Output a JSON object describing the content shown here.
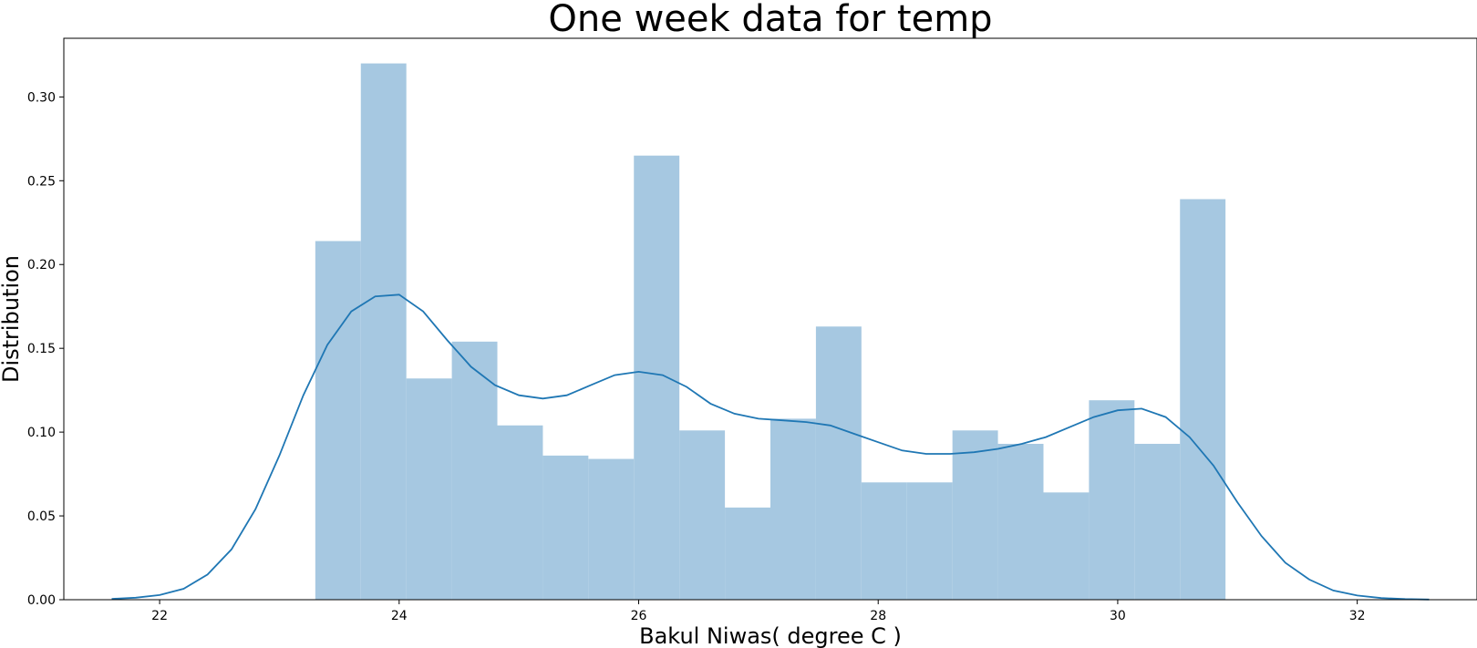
{
  "chart_data": {
    "type": "bar",
    "title": "One week data for temp",
    "xlabel": "Bakul Niwas( degree C )",
    "ylabel": "Distribution",
    "xlim": [
      21.2,
      33.0
    ],
    "ylim": [
      0.0,
      0.335
    ],
    "grid": false,
    "x_ticks": [
      22,
      24,
      26,
      28,
      30,
      32
    ],
    "x_tick_labels": [
      "22",
      "24",
      "26",
      "28",
      "30",
      "32"
    ],
    "y_ticks": [
      0.0,
      0.05,
      0.1,
      0.15,
      0.2,
      0.25,
      0.3
    ],
    "y_tick_labels": [
      "0.00",
      "0.05",
      "0.10",
      "0.15",
      "0.20",
      "0.25",
      "0.30"
    ],
    "colors": {
      "bars": "#a6c8e1",
      "kde_line": "#1f77b4"
    },
    "histogram": {
      "bin_edges": [
        23.3,
        23.68,
        24.06,
        24.44,
        24.82,
        25.2,
        25.58,
        25.96,
        26.34,
        26.72,
        27.1,
        27.48,
        27.86,
        28.24,
        28.62,
        29.0,
        29.38,
        29.76,
        30.14,
        30.52,
        30.9
      ],
      "values": [
        0.214,
        0.32,
        0.132,
        0.154,
        0.104,
        0.086,
        0.084,
        0.265,
        0.101,
        0.055,
        0.108,
        0.163,
        0.07,
        0.07,
        0.101,
        0.093,
        0.064,
        0.119,
        0.093,
        0.239
      ]
    },
    "series": [
      {
        "type": "line",
        "x": [
          21.6,
          21.8,
          22.0,
          22.2,
          22.4,
          22.6,
          22.8,
          23.0,
          23.2,
          23.4,
          23.6,
          23.8,
          24.0,
          24.2,
          24.4,
          24.6,
          24.8,
          25.0,
          25.2,
          25.4,
          25.6,
          25.8,
          26.0,
          26.2,
          26.4,
          26.6,
          26.8,
          27.0,
          27.2,
          27.4,
          27.6,
          27.8,
          28.0,
          28.2,
          28.4,
          28.6,
          28.8,
          29.0,
          29.2,
          29.4,
          29.6,
          29.8,
          30.0,
          30.2,
          30.4,
          30.6,
          30.8,
          31.0,
          31.2,
          31.4,
          31.6,
          31.8,
          32.0,
          32.2,
          32.4,
          32.6
        ],
        "y": [
          0.0005,
          0.0012,
          0.0028,
          0.0065,
          0.015,
          0.03,
          0.054,
          0.086,
          0.122,
          0.152,
          0.172,
          0.181,
          0.182,
          0.172,
          0.155,
          0.139,
          0.128,
          0.122,
          0.12,
          0.122,
          0.128,
          0.134,
          0.136,
          0.134,
          0.127,
          0.117,
          0.111,
          0.108,
          0.107,
          0.106,
          0.104,
          0.099,
          0.094,
          0.089,
          0.087,
          0.087,
          0.088,
          0.09,
          0.093,
          0.097,
          0.103,
          0.109,
          0.113,
          0.114,
          0.109,
          0.097,
          0.08,
          0.058,
          0.038,
          0.022,
          0.012,
          0.0055,
          0.0025,
          0.001,
          0.0004,
          0.0001
        ]
      }
    ]
  }
}
